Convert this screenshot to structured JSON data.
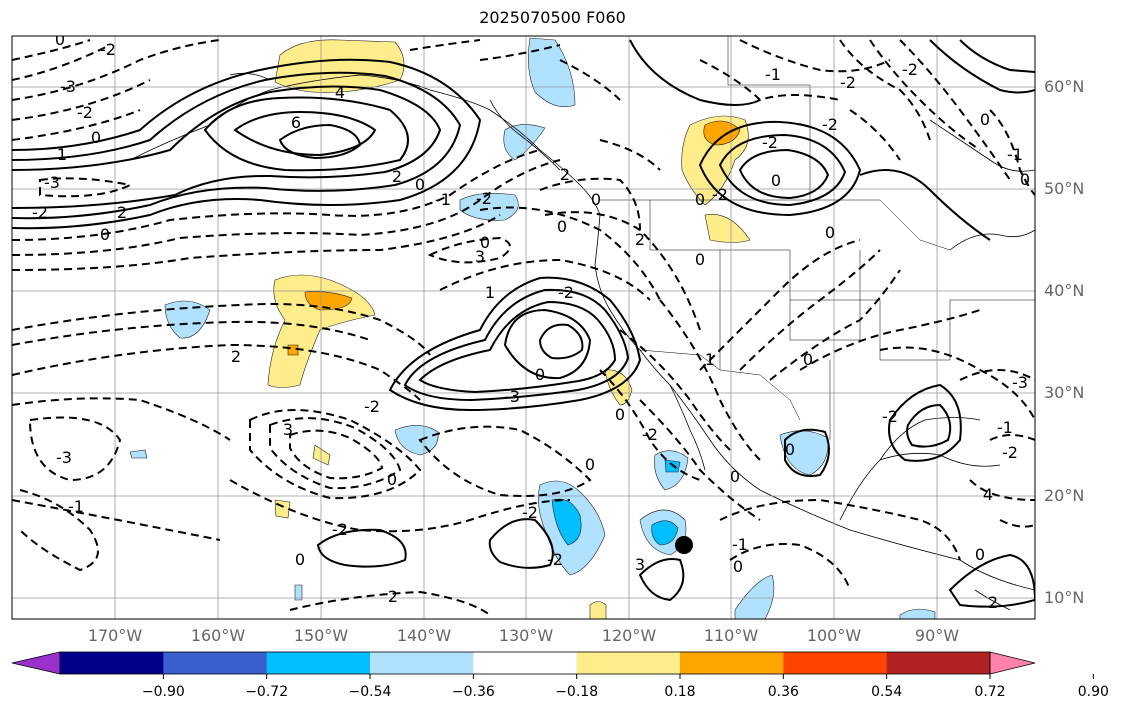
{
  "title": "2025070500 F060",
  "lon_labels": [
    "170°W",
    "160°W",
    "150°W",
    "140°W",
    "130°W",
    "120°W",
    "110°W",
    "100°W",
    "90°W"
  ],
  "lat_labels": [
    "60°N",
    "50°N",
    "40°N",
    "30°N",
    "20°N",
    "10°N"
  ],
  "colorbar": {
    "ticks": [
      "−0.90",
      "−0.72",
      "−0.54",
      "−0.36",
      "−0.18",
      "0.18",
      "0.36",
      "0.54",
      "0.72",
      "0.90"
    ],
    "colors": [
      "#9932cc",
      "#00008b",
      "#3a5fcd",
      "#00bfff",
      "#b0e2ff",
      "#ffffff",
      "#ffec8b",
      "#ffa500",
      "#ff4500",
      "#b22222",
      "#ff82ab"
    ]
  },
  "contour_labels": [
    "0",
    "-2",
    "-3",
    "-2",
    "0",
    "1",
    "-3",
    "-2",
    "0",
    "2",
    "4",
    "6",
    "2",
    "0",
    "-1",
    "-2",
    "0",
    "1",
    "-2",
    "0",
    "-3",
    "-2",
    "3",
    "2",
    "-3",
    "-1",
    "0",
    "-2",
    "-2",
    "2",
    "3",
    "0",
    "-1",
    "-2",
    "-2",
    "0",
    "-1",
    "0",
    "-2",
    "-2",
    "0",
    "0",
    "1",
    "0",
    "-2",
    "0",
    "4",
    "2",
    "0",
    "0",
    "2",
    "3",
    "2",
    "0",
    "0",
    "-3",
    "-1",
    "-2",
    "0",
    "0",
    "-2",
    "-2",
    "0",
    "-2",
    "0",
    "0",
    "-1"
  ],
  "marker": "storm-center-dot"
}
